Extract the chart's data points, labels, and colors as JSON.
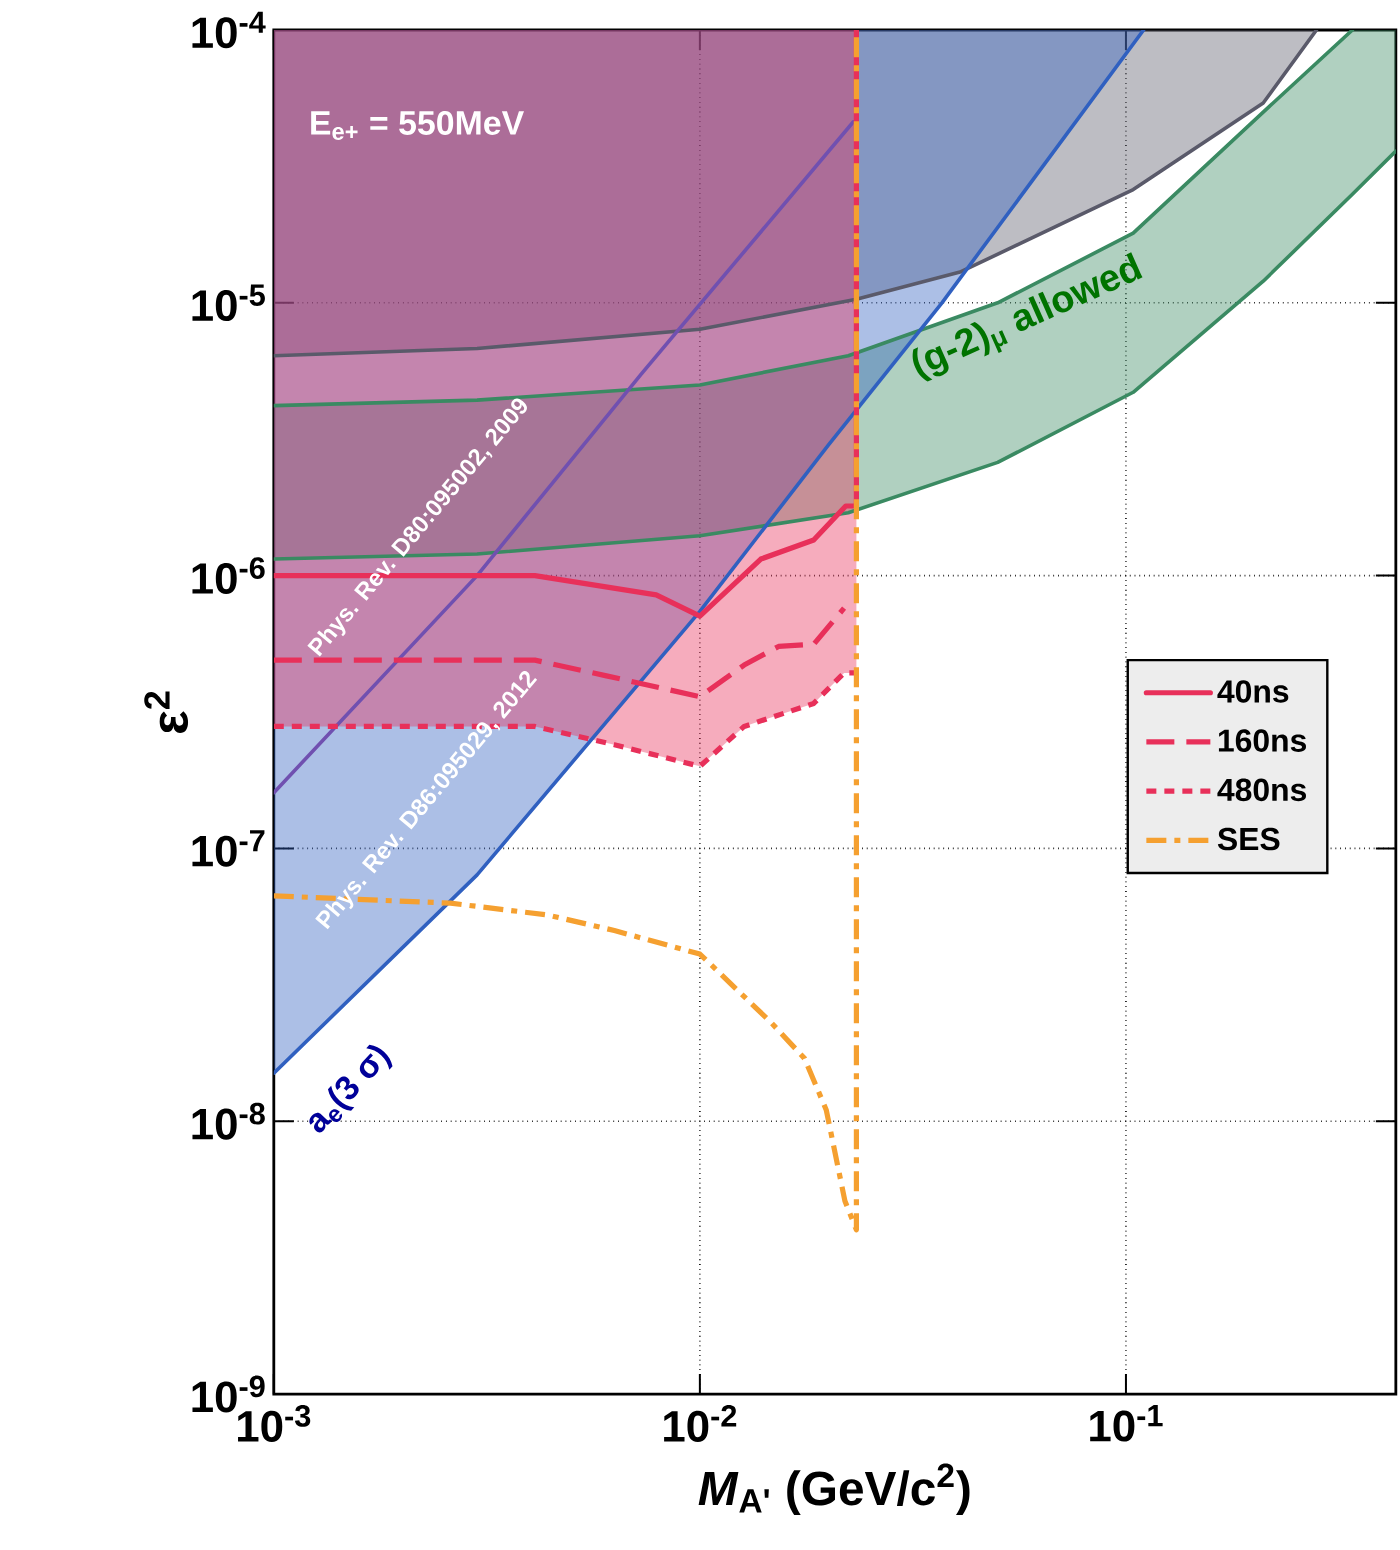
{
  "chart_data": {
    "type": "line",
    "xlabel": "*M*$_{A'}$ (GeV/c$^{2}$)",
    "ylabel": "ε$^{2}$",
    "log": "xy",
    "grid": true,
    "legend": "center right",
    "xlim": [
      0.001,
      0.43
    ],
    "ylim": [
      1e-09,
      0.0001
    ],
    "xticks": [
      {
        "value": 0.001,
        "label": "10$^{-3}$"
      },
      {
        "value": 0.01,
        "label": "10$^{-2}$"
      },
      {
        "value": 0.1,
        "label": "10$^{-1}$"
      }
    ],
    "yticks": [
      {
        "value": 1e-09,
        "label": "10$^{-9}$"
      },
      {
        "value": 1e-08,
        "label": "10$^{-8}$"
      },
      {
        "value": 1e-07,
        "label": "10$^{-7}$"
      },
      {
        "value": 1e-06,
        "label": "10$^{-6}$"
      },
      {
        "value": 1e-05,
        "label": "10$^{-5}$"
      },
      {
        "value": 0.0001,
        "label": "10$^{-4}$"
      }
    ],
    "series": [
      {
        "color": "#5a5a6a",
        "line_style": "solid",
        "x": [
          0.001,
          0.003,
          0.01,
          0.0233,
          0.041,
          0.104,
          0.21,
          0.28
        ],
        "values": [
          6.4e-06,
          6.8e-06,
          8e-06,
          1.03e-05,
          1.3e-05,
          2.6e-05,
          5.4e-05,
          0.0001
        ],
        "lower": [
          6.4e-06,
          6.8e-06,
          8e-06,
          1.03e-05,
          1.3e-05,
          2.6e-05,
          5.4e-05,
          0.0001
        ],
        "upper": [
          0.0001,
          0.0001,
          0.0001,
          0.0001,
          0.0001,
          0.0001,
          0.0001,
          0.0001
        ]
      },
      {
        "color": "#3a8a62",
        "line_style": "solid",
        "x": [
          0.001,
          0.003,
          0.01,
          0.0223,
          0.05,
          0.104,
          0.21,
          0.34,
          0.43
        ],
        "values": [
          1.15e-06,
          1.2e-06,
          1.4e-06,
          1.7e-06,
          2.6e-06,
          4.7e-06,
          1.2e-05,
          2.5e-05,
          3.6e-05
        ],
        "lower": [
          1.15e-06,
          1.2e-06,
          1.4e-06,
          1.7e-06,
          2.6e-06,
          4.7e-06,
          1.2e-05,
          2.5e-05,
          3.6e-05
        ],
        "upper": [
          4.2e-06,
          4.4e-06,
          5e-06,
          6.4e-06,
          1e-05,
          1.8e-05,
          5e-05,
          0.0001,
          0.0001
        ]
      },
      {
        "color": "#3a8a62",
        "line_style": "solid",
        "x": [
          0.001,
          0.003,
          0.01,
          0.0223,
          0.05,
          0.104,
          0.21,
          0.34
        ],
        "values": [
          4.2e-06,
          4.4e-06,
          5e-06,
          6.4e-06,
          1e-05,
          1.8e-05,
          5e-05,
          0.0001
        ]
      },
      {
        "color": "#7050b0",
        "line_style": "solid",
        "x": [
          0.001,
          0.003,
          0.0073,
          0.0229
        ],
        "values": [
          1.6e-07,
          1e-06,
          5.5e-06,
          4.6e-05
        ]
      },
      {
        "color": "#3060c0",
        "line_style": "solid",
        "x": [
          0.001,
          0.003,
          0.01,
          0.02,
          0.037,
          0.11
        ],
        "values": [
          1.5e-08,
          8e-08,
          7.4e-07,
          3e-06,
          1e-05,
          0.0001
        ],
        "lower": [
          1.5e-08,
          8e-08,
          7.4e-07,
          3e-06,
          1e-05,
          0.0001
        ],
        "upper": [
          0.0001,
          0.0001,
          0.0001,
          0.0001,
          0.0001,
          0.0001
        ]
      },
      {
        "name": "40ns",
        "color": "#e8305a",
        "line_style": "solid",
        "x": [
          0.001,
          0.0041,
          0.0079,
          0.01,
          0.0139,
          0.0185,
          0.022,
          0.0233,
          0.0233
        ],
        "values": [
          1e-06,
          1e-06,
          8.5e-07,
          7.1e-07,
          1.15e-06,
          1.35e-06,
          1.8e-06,
          1.8e-06,
          0.0001
        ]
      },
      {
        "name": "160ns",
        "color": "#e8305a",
        "line_style": "dashed",
        "x": [
          0.001,
          0.0041,
          0.006,
          0.01,
          0.0127,
          0.0153,
          0.0185,
          0.0218
        ],
        "values": [
          4.9e-07,
          4.9e-07,
          4.3e-07,
          3.6e-07,
          4.7e-07,
          5.5e-07,
          5.6e-07,
          7.6e-07
        ]
      },
      {
        "name": "480ns",
        "color": "#e8305a",
        "line_style": "dotted",
        "x": [
          0.001,
          0.0041,
          0.0063,
          0.01,
          0.0127,
          0.0185,
          0.0218,
          0.0233
        ],
        "values": [
          2.8e-07,
          2.8e-07,
          2.4e-07,
          2e-07,
          2.8e-07,
          3.4e-07,
          4.4e-07,
          4.4e-07
        ],
        "lower": [
          2.8e-07,
          2.8e-07,
          2.4e-07,
          2e-07,
          2.8e-07,
          3.4e-07,
          4.4e-07,
          4.4e-07
        ],
        "upper": [
          0.0001,
          0.0001,
          0.0001,
          0.0001,
          0.0001,
          0.0001,
          0.0001,
          0.0001
        ]
      },
      {
        "name": "SES",
        "color": "#f5a030",
        "line_style": "dashdot",
        "x": [
          0.001,
          0.0026,
          0.0044,
          0.0063,
          0.01,
          0.0147,
          0.0176,
          0.0198,
          0.0219,
          0.0233,
          0.0233
        ],
        "values": [
          6.7e-08,
          6.3e-08,
          5.7e-08,
          5e-08,
          4.1e-08,
          2.3e-08,
          1.7e-08,
          1.1e-08,
          5.1e-09,
          4e-09,
          0.0001
        ]
      }
    ],
    "annotations": [
      "E$_{e+}$ = 550MeV",
      "Phys. Rev. D80:095002, 2009",
      "Phys. Rev. D86:095029, 2012",
      "a$_{e}$(3 σ)",
      "(g-2)$_{μ}$ allowed"
    ]
  }
}
